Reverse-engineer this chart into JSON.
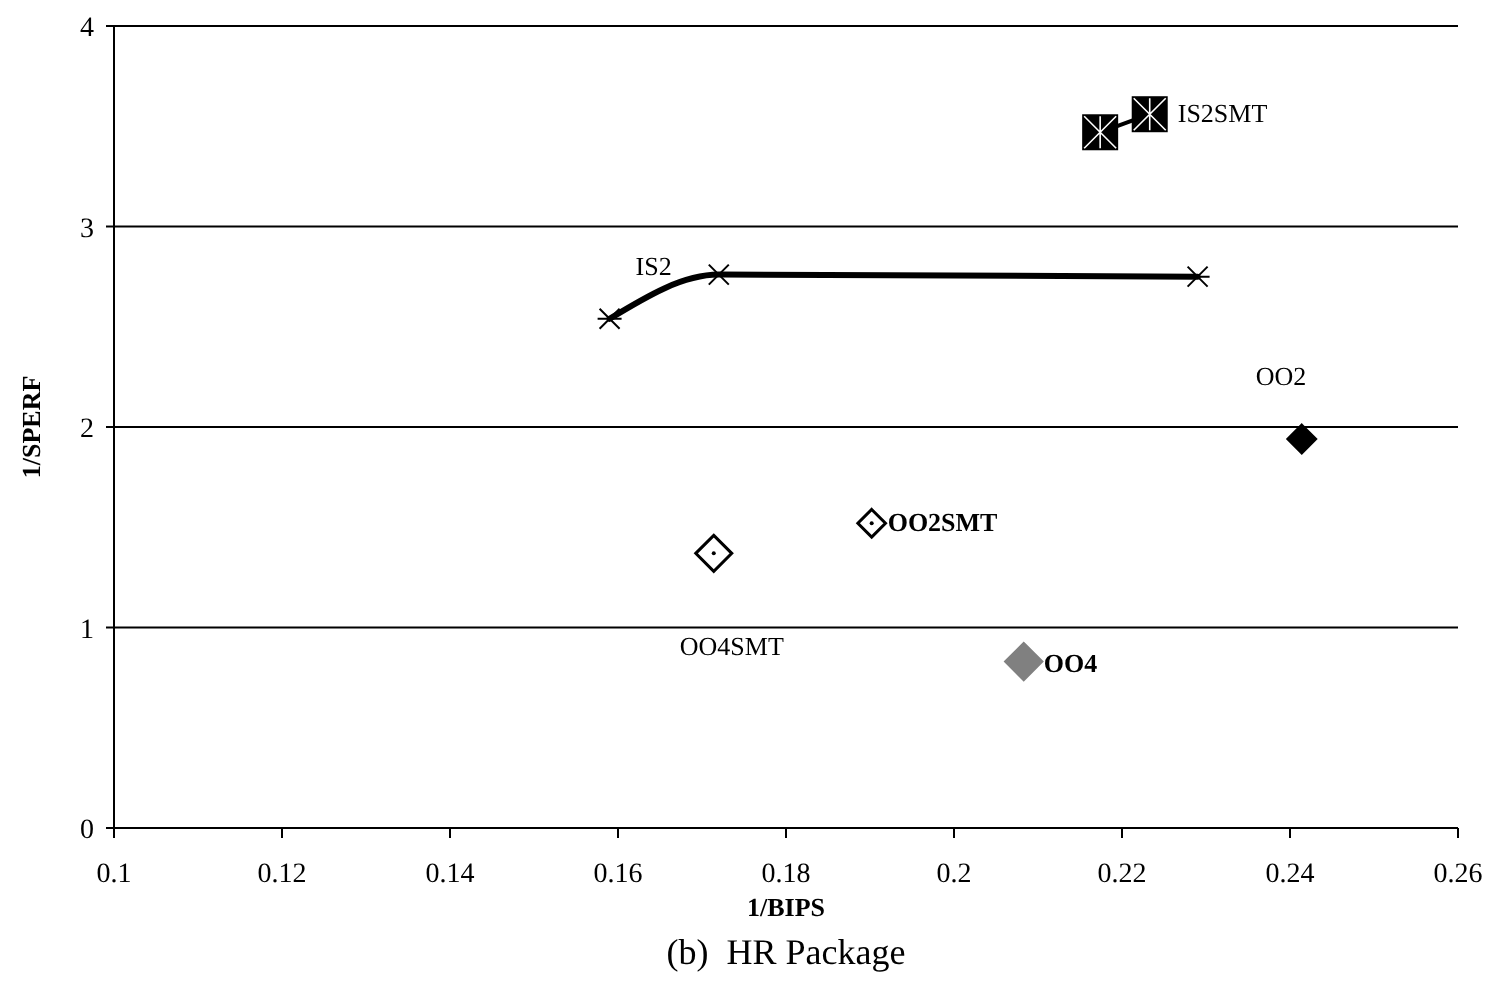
{
  "chart_data": {
    "type": "scatter",
    "title": "(b)  HR Package",
    "xlabel": "1/BIPS",
    "ylabel": "1/SPERF",
    "xlim": [
      0.1,
      0.26
    ],
    "xticks": [
      0.1,
      0.12,
      0.14,
      0.16,
      0.18,
      0.2,
      0.22,
      0.24,
      0.26
    ],
    "ylim": [
      0,
      4
    ],
    "yticks": [
      0,
      1,
      2,
      3,
      4
    ],
    "grid": "y",
    "legend": false,
    "series": [
      {
        "name": "IS2",
        "type": "line",
        "color": "#000000",
        "marker": "cross",
        "x": [
          0.159,
          0.172,
          0.229
        ],
        "values": [
          2.54,
          2.76,
          2.75
        ]
      },
      {
        "name": "IS2SMT",
        "type": "line",
        "color": "#000000",
        "marker": "square",
        "x": [
          0.2174,
          0.2233
        ],
        "values": [
          3.47,
          3.56
        ]
      },
      {
        "name": "OO2",
        "type": "scatter",
        "color": "#000000",
        "marker": "diamond",
        "x": [
          0.2414
        ],
        "values": [
          1.94
        ]
      },
      {
        "name": "OO2SMT",
        "type": "scatter",
        "color": "#000000",
        "marker": "diamond",
        "x": [
          0.1902
        ],
        "values": [
          1.52
        ]
      },
      {
        "name": "OO4SMT",
        "type": "scatter",
        "color": "#000000",
        "marker": "diamond",
        "x": [
          0.1714
        ],
        "values": [
          1.37
        ]
      },
      {
        "name": "OO4",
        "type": "scatter",
        "color": "#808080",
        "marker": "diamond",
        "x": [
          0.2083
        ],
        "values": [
          0.83
        ]
      }
    ]
  }
}
